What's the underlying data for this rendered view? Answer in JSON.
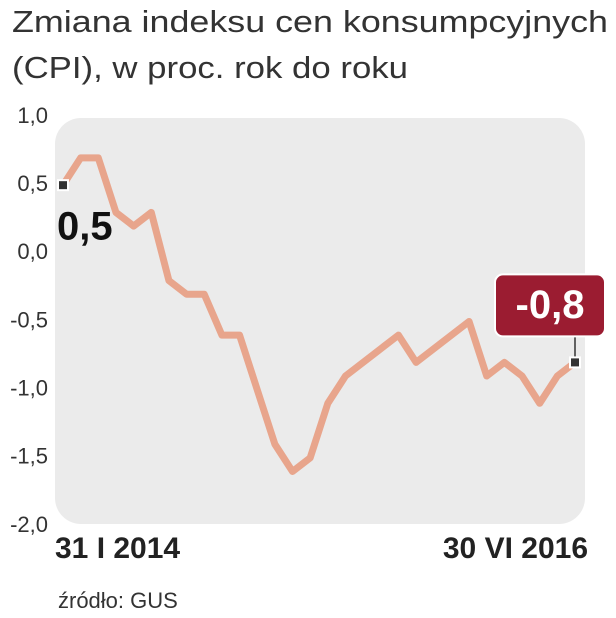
{
  "chart_data": {
    "type": "line",
    "title": [
      "Zmiana indeksu cen konsumpcyjnych",
      "(CPI), w proc. rok do roku"
    ],
    "source": "źródło: GUS",
    "categories": [
      "31 I 2014",
      null,
      null,
      null,
      null,
      null,
      null,
      null,
      null,
      null,
      null,
      null,
      null,
      null,
      null,
      null,
      null,
      null,
      null,
      null,
      null,
      null,
      null,
      null,
      null,
      null,
      null,
      null,
      null,
      "30 VI 2016"
    ],
    "series": [
      {
        "name": "CPI",
        "color": "#e8a58c",
        "values": [
          0.5,
          0.7,
          0.7,
          0.3,
          0.2,
          0.3,
          -0.2,
          -0.3,
          -0.3,
          -0.6,
          -0.6,
          -1.0,
          -1.4,
          -1.6,
          -1.5,
          -1.1,
          -0.9,
          -0.8,
          -0.7,
          -0.6,
          -0.8,
          -0.7,
          -0.6,
          -0.5,
          -0.9,
          -0.8,
          -0.9,
          -1.1,
          -0.9,
          -0.8
        ],
        "value_labels": [
          "0,5",
          null,
          null,
          null,
          null,
          null,
          null,
          null,
          null,
          null,
          null,
          null,
          null,
          null,
          null,
          null,
          null,
          null,
          null,
          null,
          null,
          null,
          null,
          null,
          null,
          null,
          null,
          null,
          null,
          "-0,8"
        ]
      }
    ],
    "ylim": [
      -2.0,
      1.0
    ],
    "yticks": [
      {
        "value": 1.0,
        "label": "1,0"
      },
      {
        "value": 0.5,
        "label": "0,5"
      },
      {
        "value": 0.0,
        "label": "0,0"
      },
      {
        "value": -0.5,
        "label": "-0,5"
      },
      {
        "value": -1.0,
        "label": "-1,0"
      },
      {
        "value": -1.5,
        "label": "-1,5"
      },
      {
        "value": -2.0,
        "label": "-2,0"
      }
    ]
  }
}
